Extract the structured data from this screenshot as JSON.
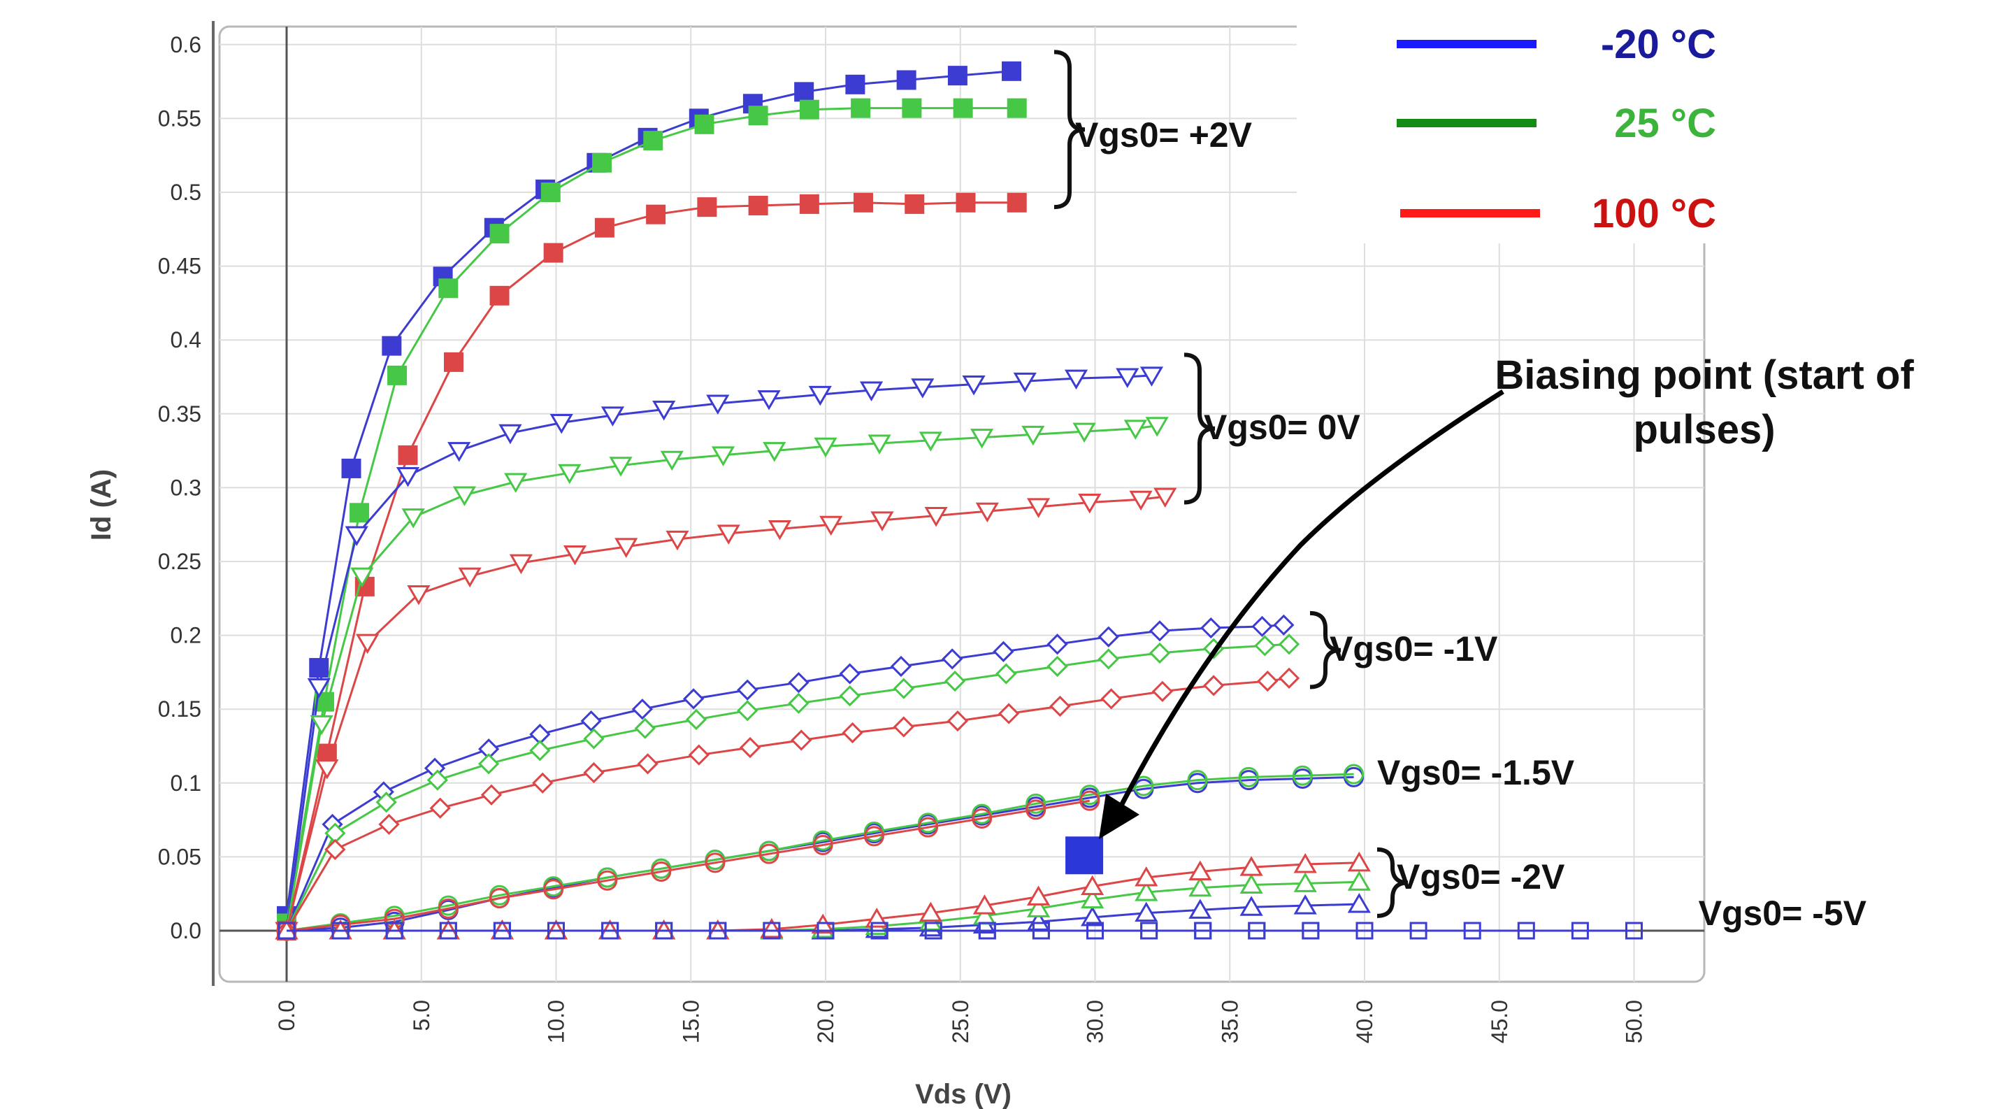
{
  "chart_data": {
    "type": "line",
    "xlabel": "Vds (V)",
    "ylabel": "Id (A)",
    "xlim": [
      -3,
      52
    ],
    "ylim": [
      -0.035,
      0.61
    ],
    "x_ticks": [
      0,
      5,
      10,
      15,
      20,
      25,
      30,
      35,
      40,
      45,
      50
    ],
    "x_tick_labels": [
      "0.0",
      "5.0",
      "10.0",
      "15.0",
      "20.0",
      "25.0",
      "30.0",
      "35.0",
      "40.0",
      "45.0",
      "50.0"
    ],
    "y_ticks": [
      0,
      0.05,
      0.1,
      0.15,
      0.2,
      0.25,
      0.3,
      0.35,
      0.4,
      0.45,
      0.5,
      0.55,
      0.6
    ],
    "y_tick_labels": [
      "0.0",
      "0.05",
      "0.1",
      "0.15",
      "0.2",
      "0.25",
      "0.3",
      "0.35",
      "0.4",
      "0.45",
      "0.5",
      "0.55",
      "0.6"
    ],
    "grid": true,
    "legend_position": "top-right",
    "legend": [
      {
        "label": "-20 °C",
        "line_color": "#1a1aff",
        "text_color": "#1a1a9c"
      },
      {
        "label": "25 °C",
        "line_color": "#148c14",
        "text_color": "#3cb43c"
      },
      {
        "label": "100 °C",
        "line_color": "#ff1a1a",
        "text_color": "#cc1111"
      }
    ],
    "group_labels": [
      {
        "label": "Vgs0= +2V",
        "bracket": [
          0.49,
          0.595
        ]
      },
      {
        "label": "Vgs0= 0V",
        "bracket": [
          0.29,
          0.39
        ]
      },
      {
        "label": "Vgs0= -1V",
        "bracket": [
          0.165,
          0.215
        ]
      },
      {
        "label": "Vgs0= -1.5V",
        "bracket": null
      },
      {
        "label": "Vgs0= -2V",
        "bracket": [
          0.01,
          0.055
        ]
      },
      {
        "label": "Vgs0= -5V",
        "bracket": null
      }
    ],
    "annotation": {
      "text_lines": [
        "Biasing point (start of",
        "pulses)"
      ],
      "point": {
        "x": 29.6,
        "y": 0.051
      }
    },
    "series": [
      {
        "name": "",
        "group": "Vgs0= +2V",
        "temp": "-20 °C",
        "color": "#3c3cd2",
        "marker": "square-filled",
        "x": [
          0,
          1.2,
          2.4,
          3.9,
          5.8,
          7.7,
          9.6,
          11.5,
          13.4,
          15.3,
          17.3,
          19.2,
          21.1,
          23.0,
          24.9,
          26.9
        ],
        "y": [
          0.01,
          0.178,
          0.313,
          0.396,
          0.443,
          0.476,
          0.502,
          0.52,
          0.537,
          0.55,
          0.56,
          0.568,
          0.573,
          0.576,
          0.579,
          0.582
        ]
      },
      {
        "name": "",
        "group": "Vgs0= +2V",
        "temp": "25 °C",
        "color": "#46c846",
        "marker": "square-filled",
        "x": [
          0,
          1.4,
          2.7,
          4.1,
          6.0,
          7.9,
          9.8,
          11.7,
          13.6,
          15.5,
          17.5,
          19.4,
          21.3,
          23.2,
          25.1,
          27.1
        ],
        "y": [
          0.005,
          0.155,
          0.283,
          0.376,
          0.435,
          0.472,
          0.5,
          0.52,
          0.535,
          0.546,
          0.552,
          0.556,
          0.557,
          0.557,
          0.557,
          0.557
        ]
      },
      {
        "name": "",
        "group": "Vgs0= +2V",
        "temp": "100 °C",
        "color": "#dc4646",
        "marker": "square-filled",
        "x": [
          0,
          1.5,
          2.9,
          4.5,
          6.2,
          7.9,
          9.9,
          11.8,
          13.7,
          15.6,
          17.5,
          19.4,
          21.4,
          23.3,
          25.2,
          27.1
        ],
        "y": [
          0.0,
          0.12,
          0.233,
          0.322,
          0.385,
          0.43,
          0.459,
          0.476,
          0.485,
          0.49,
          0.491,
          0.492,
          0.493,
          0.492,
          0.493,
          0.493
        ]
      },
      {
        "name": "",
        "group": "Vgs0= 0V",
        "temp": "-20 °C",
        "color": "#3c3cd2",
        "marker": "triangle-down",
        "x": [
          0,
          1.2,
          2.6,
          4.5,
          6.4,
          8.3,
          10.2,
          12.1,
          14.0,
          16.0,
          17.9,
          19.8,
          21.7,
          23.6,
          25.5,
          27.4,
          29.3,
          31.2,
          32.1
        ],
        "y": [
          0.0,
          0.165,
          0.268,
          0.308,
          0.325,
          0.337,
          0.344,
          0.349,
          0.353,
          0.357,
          0.36,
          0.363,
          0.366,
          0.368,
          0.37,
          0.372,
          0.374,
          0.375,
          0.376
        ]
      },
      {
        "name": "",
        "group": "Vgs0= 0V",
        "temp": "25 °C",
        "color": "#46c846",
        "marker": "triangle-down",
        "x": [
          0,
          1.3,
          2.8,
          4.7,
          6.6,
          8.5,
          10.5,
          12.4,
          14.3,
          16.2,
          18.1,
          20.0,
          22.0,
          23.9,
          25.8,
          27.7,
          29.6,
          31.5,
          32.3
        ],
        "y": [
          0.0,
          0.14,
          0.24,
          0.28,
          0.295,
          0.304,
          0.31,
          0.315,
          0.319,
          0.322,
          0.325,
          0.328,
          0.33,
          0.332,
          0.334,
          0.336,
          0.338,
          0.34,
          0.342
        ]
      },
      {
        "name": "",
        "group": "Vgs0= 0V",
        "temp": "100 °C",
        "color": "#dc4646",
        "marker": "triangle-down",
        "x": [
          0,
          1.5,
          3.0,
          4.9,
          6.8,
          8.7,
          10.7,
          12.6,
          14.5,
          16.4,
          18.3,
          20.2,
          22.1,
          24.1,
          26.0,
          27.9,
          29.8,
          31.7,
          32.6
        ],
        "y": [
          0.0,
          0.11,
          0.195,
          0.228,
          0.24,
          0.249,
          0.255,
          0.26,
          0.265,
          0.269,
          0.272,
          0.275,
          0.278,
          0.281,
          0.284,
          0.287,
          0.29,
          0.292,
          0.294
        ]
      },
      {
        "name": "",
        "group": "Vgs0= -1V",
        "temp": "-20 °C",
        "color": "#3c3cd2",
        "marker": "diamond",
        "x": [
          0,
          1.7,
          3.6,
          5.5,
          7.5,
          9.4,
          11.3,
          13.2,
          15.1,
          17.1,
          19.0,
          20.9,
          22.8,
          24.7,
          26.6,
          28.6,
          30.5,
          32.4,
          34.3,
          36.2,
          37.0
        ],
        "y": [
          0.0,
          0.072,
          0.094,
          0.11,
          0.123,
          0.133,
          0.142,
          0.15,
          0.157,
          0.163,
          0.168,
          0.174,
          0.179,
          0.184,
          0.189,
          0.194,
          0.199,
          0.203,
          0.205,
          0.206,
          0.207
        ]
      },
      {
        "name": "",
        "group": "Vgs0= -1V",
        "temp": "25 °C",
        "color": "#46c846",
        "marker": "diamond",
        "x": [
          0,
          1.8,
          3.7,
          5.6,
          7.5,
          9.4,
          11.4,
          13.3,
          15.2,
          17.1,
          19.0,
          20.9,
          22.9,
          24.8,
          26.7,
          28.6,
          30.5,
          32.4,
          34.4,
          36.3,
          37.2
        ],
        "y": [
          0.0,
          0.066,
          0.087,
          0.102,
          0.113,
          0.122,
          0.13,
          0.137,
          0.143,
          0.149,
          0.154,
          0.159,
          0.164,
          0.169,
          0.174,
          0.179,
          0.184,
          0.188,
          0.191,
          0.193,
          0.194
        ]
      },
      {
        "name": "",
        "group": "Vgs0= -1V",
        "temp": "100 °C",
        "color": "#dc4646",
        "marker": "diamond",
        "x": [
          0,
          1.8,
          3.8,
          5.7,
          7.6,
          9.5,
          11.4,
          13.4,
          15.3,
          17.2,
          19.1,
          21.0,
          22.9,
          24.9,
          26.8,
          28.7,
          30.6,
          32.5,
          34.4,
          36.4,
          37.2
        ],
        "y": [
          0.0,
          0.055,
          0.072,
          0.083,
          0.092,
          0.1,
          0.107,
          0.113,
          0.119,
          0.124,
          0.129,
          0.134,
          0.138,
          0.142,
          0.147,
          0.152,
          0.157,
          0.162,
          0.166,
          0.169,
          0.171
        ]
      },
      {
        "name": "",
        "group": "Vgs0= -1.5V",
        "temp": "-20 °C",
        "color": "#3c3cd2",
        "marker": "circle",
        "x": [
          0,
          2.0,
          4.0,
          6.0,
          7.9,
          9.9,
          11.9,
          13.9,
          15.9,
          17.9,
          19.9,
          21.8,
          23.8,
          25.8,
          27.8,
          29.8,
          31.8,
          33.8,
          35.7,
          37.7,
          39.6
        ],
        "y": [
          0.0,
          0.002,
          0.006,
          0.014,
          0.022,
          0.029,
          0.036,
          0.042,
          0.048,
          0.054,
          0.06,
          0.066,
          0.072,
          0.078,
          0.084,
          0.09,
          0.096,
          0.1,
          0.102,
          0.103,
          0.104
        ]
      },
      {
        "name": "",
        "group": "Vgs0= -1.5V",
        "temp": "25 °C",
        "color": "#46c846",
        "marker": "circle",
        "x": [
          0,
          2.0,
          4.0,
          6.0,
          7.9,
          9.9,
          11.9,
          13.9,
          15.9,
          17.9,
          19.9,
          21.8,
          23.8,
          25.8,
          27.8,
          29.8,
          31.8,
          33.8,
          35.7,
          37.7,
          39.6
        ],
        "y": [
          0.0,
          0.005,
          0.01,
          0.017,
          0.024,
          0.03,
          0.036,
          0.042,
          0.048,
          0.054,
          0.061,
          0.067,
          0.073,
          0.079,
          0.086,
          0.092,
          0.098,
          0.102,
          0.104,
          0.105,
          0.106
        ]
      },
      {
        "name": "",
        "group": "Vgs0= -1.5V",
        "temp": "100 °C",
        "color": "#dc4646",
        "marker": "circle",
        "x": [
          0,
          2.0,
          4.0,
          6.0,
          7.9,
          9.9,
          11.9,
          13.9,
          15.9,
          17.9,
          19.9,
          21.8,
          23.8,
          25.8,
          27.8,
          29.8
        ],
        "y": [
          0.0,
          0.004,
          0.008,
          0.015,
          0.022,
          0.028,
          0.034,
          0.04,
          0.046,
          0.052,
          0.058,
          0.064,
          0.07,
          0.076,
          0.082,
          0.088
        ]
      },
      {
        "name": "",
        "group": "Vgs0= -2V",
        "temp": "-20 °C",
        "color": "#3c3cd2",
        "marker": "triangle-up",
        "x": [
          0,
          2.0,
          4.0,
          6.0,
          8.0,
          10.0,
          12.0,
          14.0,
          16.0,
          18.0,
          19.9,
          21.9,
          23.9,
          25.9,
          27.9,
          29.9,
          31.9,
          33.9,
          35.8,
          37.8,
          39.8
        ],
        "y": [
          0.0,
          0.0,
          0.0,
          0.0,
          0.0,
          0.0,
          0.0,
          0.0,
          0.0,
          0.0,
          0.0,
          0.001,
          0.002,
          0.004,
          0.006,
          0.009,
          0.012,
          0.014,
          0.016,
          0.017,
          0.018
        ]
      },
      {
        "name": "",
        "group": "Vgs0= -2V",
        "temp": "25 °C",
        "color": "#46c846",
        "marker": "triangle-up",
        "x": [
          0,
          2.0,
          4.0,
          6.0,
          8.0,
          10.0,
          12.0,
          14.0,
          16.0,
          18.0,
          19.9,
          21.9,
          23.9,
          25.9,
          27.9,
          29.9,
          31.9,
          33.9,
          35.8,
          37.8,
          39.8
        ],
        "y": [
          0.0,
          0.0,
          0.0,
          0.0,
          0.0,
          0.0,
          0.0,
          0.0,
          0.0,
          0.0,
          0.001,
          0.003,
          0.006,
          0.01,
          0.015,
          0.021,
          0.026,
          0.029,
          0.031,
          0.032,
          0.033
        ]
      },
      {
        "name": "",
        "group": "Vgs0= -2V",
        "temp": "100 °C",
        "color": "#dc4646",
        "marker": "triangle-up",
        "x": [
          0,
          2.0,
          4.0,
          6.0,
          8.0,
          10.0,
          12.0,
          14.0,
          16.0,
          18.0,
          19.9,
          21.9,
          23.9,
          25.9,
          27.9,
          29.9,
          31.9,
          33.9,
          35.8,
          37.8,
          39.8
        ],
        "y": [
          0.0,
          0.0,
          0.0,
          0.0,
          0.0,
          0.0,
          0.0,
          0.0,
          0.0,
          0.001,
          0.004,
          0.008,
          0.012,
          0.017,
          0.023,
          0.03,
          0.036,
          0.04,
          0.043,
          0.045,
          0.046
        ]
      },
      {
        "name": "",
        "group": "Vgs0= -5V",
        "temp": "100 °C",
        "color": "#dc4646",
        "marker": "square-open",
        "x": [
          0,
          2,
          4,
          6,
          8,
          10,
          12,
          14,
          16,
          18,
          20,
          22,
          24,
          26,
          28,
          30,
          32,
          34,
          36,
          38,
          40
        ],
        "y": [
          0,
          0,
          0,
          0,
          0,
          0,
          0,
          0,
          0,
          0,
          0,
          0,
          0,
          0,
          0,
          0,
          0,
          0,
          0,
          0,
          0
        ]
      },
      {
        "name": "",
        "group": "Vgs0= -5V",
        "temp": "25 °C",
        "color": "#46c846",
        "marker": "square-open",
        "x": [
          0,
          2,
          4,
          6,
          8,
          10,
          12,
          14,
          16,
          18,
          20,
          22,
          24,
          26,
          28,
          30,
          32,
          34,
          36,
          38,
          40
        ],
        "y": [
          0,
          0,
          0,
          0,
          0,
          0,
          0,
          0,
          0,
          0,
          0,
          0,
          0,
          0,
          0,
          0,
          0,
          0,
          0,
          0,
          0
        ]
      },
      {
        "name": "",
        "group": "Vgs0= -5V",
        "temp": "-20 °C",
        "color": "#3c3cd2",
        "marker": "square-open",
        "x": [
          0,
          2,
          4,
          6,
          8,
          10,
          12,
          14,
          16,
          18,
          20,
          22,
          24,
          26,
          28,
          30,
          32,
          34,
          36,
          38,
          40,
          42,
          44,
          46,
          48,
          50
        ],
        "y": [
          0,
          0,
          0,
          0,
          0,
          0,
          0,
          0,
          0,
          0,
          0,
          0,
          0,
          0,
          0,
          0,
          0,
          0,
          0,
          0,
          0,
          0,
          0,
          0,
          0,
          0
        ]
      }
    ]
  }
}
